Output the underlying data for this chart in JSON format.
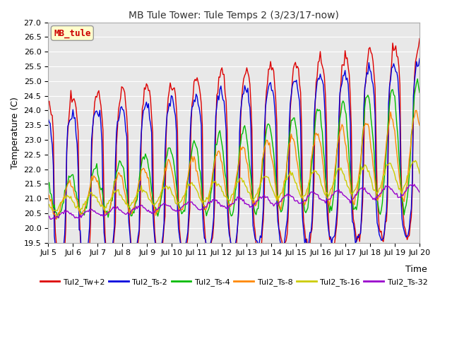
{
  "title": "MB Tule Tower: Tule Temps 2 (3/23/17-now)",
  "xlabel": "Time",
  "ylabel": "Temperature (C)",
  "ylim": [
    19.5,
    27.0
  ],
  "yticks": [
    19.5,
    20.0,
    20.5,
    21.0,
    21.5,
    22.0,
    22.5,
    23.0,
    23.5,
    24.0,
    24.5,
    25.0,
    25.5,
    26.0,
    26.5,
    27.0
  ],
  "xtick_labels": [
    "Jul 5",
    "Jul 6",
    "Jul 7",
    "Jul 8",
    "Jul 9",
    "Jul 10",
    "Jul 11",
    "Jul 12",
    "Jul 13",
    "Jul 14",
    "Jul 15",
    "Jul 16",
    "Jul 17",
    "Jul 18",
    "Jul 19",
    "Jul 20"
  ],
  "legend_labels": [
    "Tul2_Tw+2",
    "Tul2_Ts-2",
    "Tul2_Ts-4",
    "Tul2_Ts-8",
    "Tul2_Ts-16",
    "Tul2_Ts-32"
  ],
  "line_colors": [
    "#dd0000",
    "#0000dd",
    "#00bb00",
    "#ff8800",
    "#cccc00",
    "#9900cc"
  ],
  "inset_label": "MB_tule",
  "inset_label_color": "#cc0000",
  "bg_color": "#ffffff",
  "plot_bg_color": "#e8e8e8",
  "grid_color": "#ffffff"
}
